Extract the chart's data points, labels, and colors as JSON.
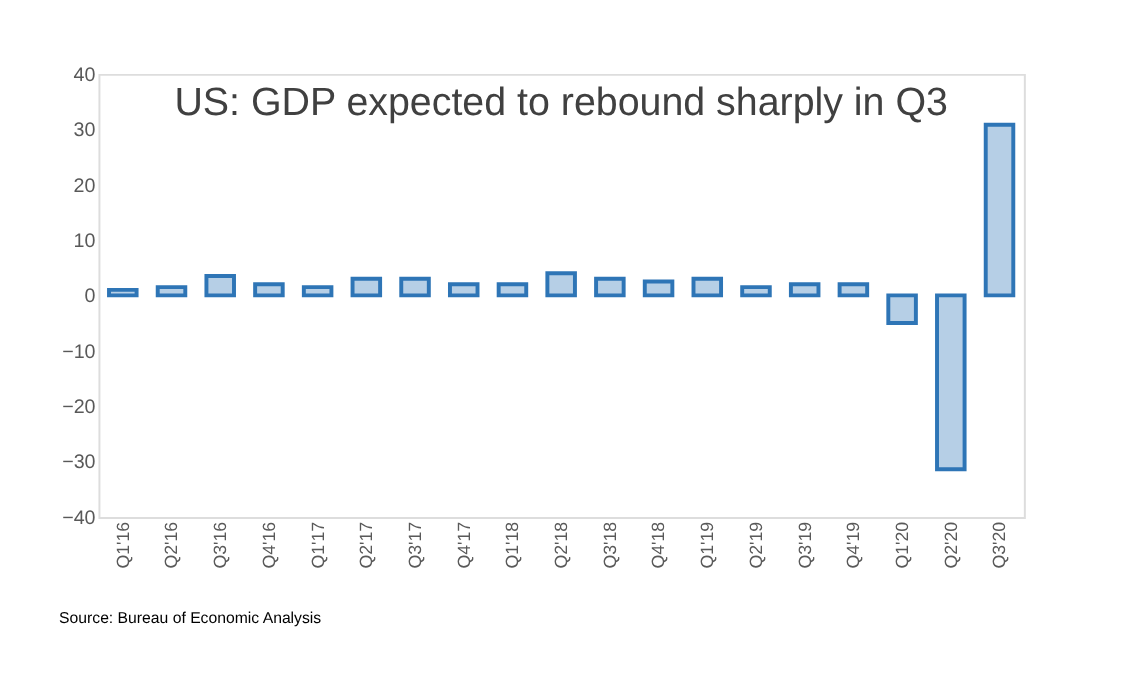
{
  "chart_data": {
    "type": "bar",
    "title": "US: GDP expected to rebound sharply in Q3",
    "categories": [
      "Q1'16",
      "Q2'16",
      "Q3'16",
      "Q4'16",
      "Q1'17",
      "Q2'17",
      "Q3'17",
      "Q4'17",
      "Q1'18",
      "Q2'18",
      "Q3'18",
      "Q4'18",
      "Q1'19",
      "Q2'19",
      "Q3'19",
      "Q4'19",
      "Q1'20",
      "Q2'20",
      "Q3'20"
    ],
    "values": [
      1,
      1.5,
      3.5,
      2,
      1.5,
      3,
      3,
      2,
      2,
      4,
      3,
      2.5,
      3,
      1.5,
      2,
      2,
      -5,
      -31.4,
      30.8
    ],
    "color": "#2e75b6",
    "ylim": [
      -40,
      40
    ],
    "yticks": [
      -40,
      -30,
      -20,
      -10,
      0,
      10,
      20,
      30,
      40
    ],
    "grid": false,
    "annotations": [
      "Source: Bureau of Economic Analysis"
    ]
  }
}
